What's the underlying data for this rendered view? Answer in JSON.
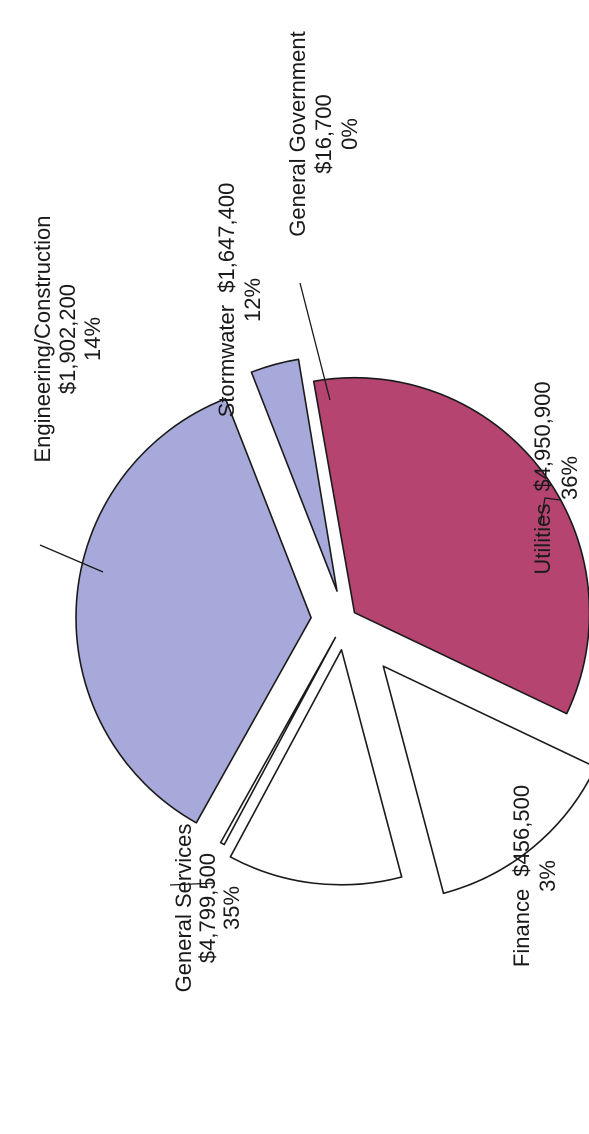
{
  "chart_data": {
    "type": "pie",
    "title": "",
    "slices": [
      {
        "label": "General Services",
        "amount": "$4,799,500",
        "percent": "35%",
        "value": 4799500,
        "color": "#b54470"
      },
      {
        "label": "Engineering/Construction",
        "amount": "$1,902,200",
        "percent": "14%",
        "value": 1902200,
        "color": "#ffffff"
      },
      {
        "label": "Stormwater",
        "amount": "$1,647,400",
        "percent": "12%",
        "value": 1647400,
        "color": "#ffffff"
      },
      {
        "label": "General Government",
        "amount": "$16,700",
        "percent": "0%",
        "value": 16700,
        "color": "#ffffff"
      },
      {
        "label": "Utilities",
        "amount": "$4,950,900",
        "percent": "36%",
        "value": 4950900,
        "color": "#a6a9d9"
      },
      {
        "label": "Finance",
        "amount": "$456,500",
        "percent": "3%",
        "value": 456500,
        "color": "#a6a9d9"
      }
    ],
    "legend": "none",
    "exploded": true
  }
}
